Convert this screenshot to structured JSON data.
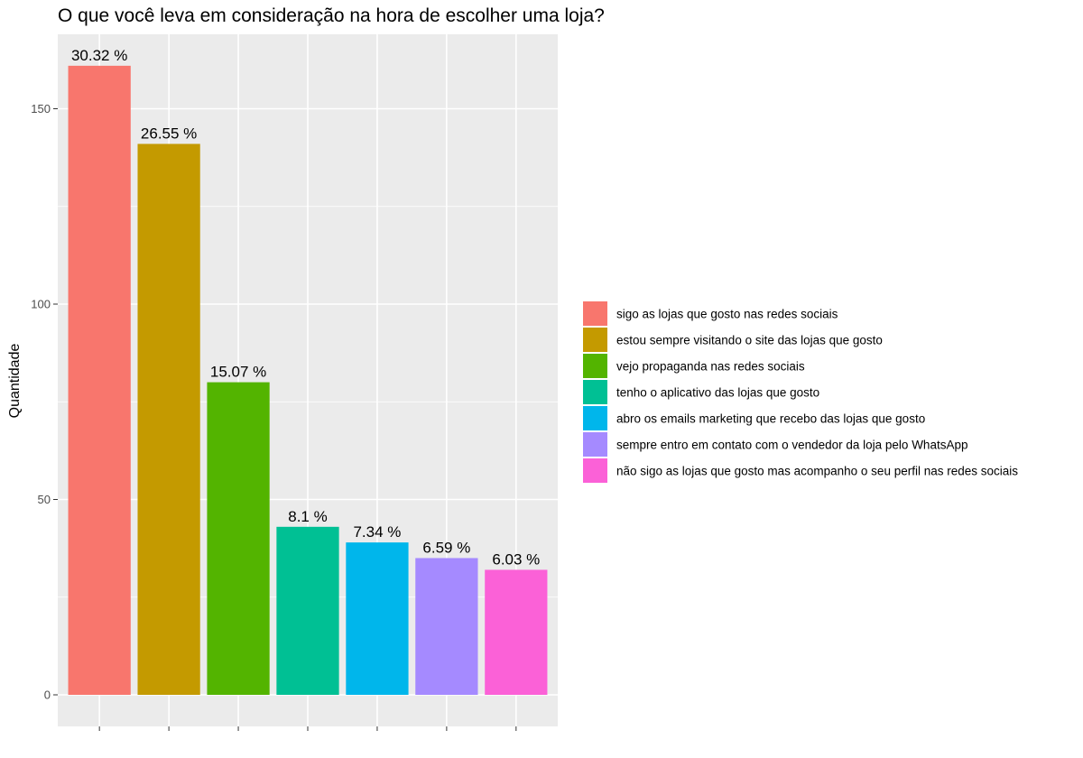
{
  "chart_data": {
    "type": "bar",
    "title": "O que você leva em consideração na hora de escolher uma loja?",
    "xlabel": "",
    "ylabel": "Quantidade",
    "ylim": [
      0,
      162
    ],
    "yticks": [
      0,
      50,
      100,
      150
    ],
    "grid": true,
    "legend_position": "right",
    "categories": [
      "sigo as lojas que gosto nas redes sociais",
      "estou sempre visitando o site das lojas que gosto",
      "vejo propaganda nas redes sociais",
      "tenho o aplicativo das lojas que gosto",
      "abro os emails marketing que recebo das lojas que gosto",
      "sempre entro em contato com o vendedor da loja pelo WhatsApp",
      "não sigo as lojas que gosto  mas acompanho o seu perfil nas redes sociais"
    ],
    "values": [
      161,
      141,
      80,
      43,
      39,
      35,
      32
    ],
    "data_labels": [
      "30.32 %",
      "26.55 %",
      "15.07 %",
      "8.1 %",
      "7.34 %",
      "6.59 %",
      "6.03 %"
    ],
    "colors": [
      "#F8766D",
      "#C49A00",
      "#53B400",
      "#00C094",
      "#00B6EB",
      "#A58AFF",
      "#FB61D7"
    ],
    "panel_background": "#EBEBEB",
    "grid_color": "#FFFFFF"
  }
}
